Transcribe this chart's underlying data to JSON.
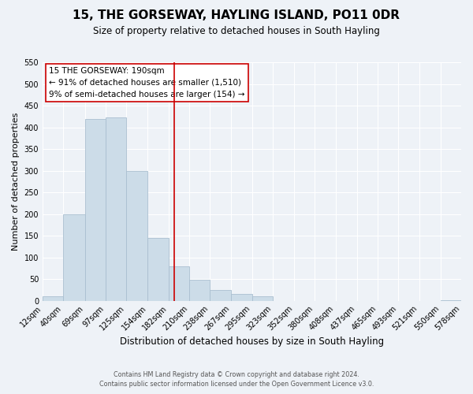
{
  "title": "15, THE GORSEWAY, HAYLING ISLAND, PO11 0DR",
  "subtitle": "Size of property relative to detached houses in South Hayling",
  "xlabel": "Distribution of detached houses by size in South Hayling",
  "ylabel": "Number of detached properties",
  "bin_edges": [
    12,
    40,
    69,
    97,
    125,
    154,
    182,
    210,
    238,
    267,
    295,
    323,
    352,
    380,
    408,
    437,
    465,
    493,
    521,
    550,
    578
  ],
  "bin_heights": [
    10,
    200,
    420,
    422,
    300,
    145,
    80,
    48,
    25,
    15,
    10,
    0,
    0,
    0,
    0,
    0,
    0,
    0,
    0,
    2
  ],
  "bar_color": "#ccdce8",
  "bar_edgecolor": "#aabfd0",
  "vline_x": 190,
  "vline_color": "#cc0000",
  "annotation_lines": [
    "15 THE GORSEWAY: 190sqm",
    "← 91% of detached houses are smaller (1,510)",
    "9% of semi-detached houses are larger (154) →"
  ],
  "ylim": [
    0,
    550
  ],
  "yticks": [
    0,
    50,
    100,
    150,
    200,
    250,
    300,
    350,
    400,
    450,
    500,
    550
  ],
  "tick_labels": [
    "12sqm",
    "40sqm",
    "69sqm",
    "97sqm",
    "125sqm",
    "154sqm",
    "182sqm",
    "210sqm",
    "238sqm",
    "267sqm",
    "295sqm",
    "323sqm",
    "352sqm",
    "380sqm",
    "408sqm",
    "437sqm",
    "465sqm",
    "493sqm",
    "521sqm",
    "550sqm",
    "578sqm"
  ],
  "footer_line1": "Contains HM Land Registry data © Crown copyright and database right 2024.",
  "footer_line2": "Contains public sector information licensed under the Open Government Licence v3.0.",
  "background_color": "#eef2f7",
  "grid_color": "#ffffff",
  "title_fontsize": 11,
  "subtitle_fontsize": 8.5,
  "xlabel_fontsize": 8.5,
  "ylabel_fontsize": 8.0,
  "tick_fontsize": 7.0,
  "ann_fontsize": 7.5,
  "footer_fontsize": 5.8
}
